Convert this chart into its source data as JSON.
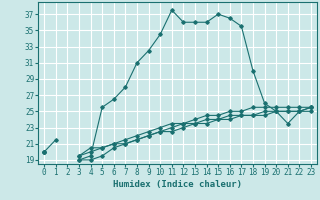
{
  "xlabel": "Humidex (Indice chaleur)",
  "ylabel": "",
  "bg_color": "#cce8e8",
  "grid_color": "#ffffff",
  "line_color": "#1a7070",
  "xlim": [
    -0.5,
    23.5
  ],
  "ylim": [
    18.5,
    38.5
  ],
  "yticks": [
    19,
    21,
    23,
    25,
    27,
    29,
    31,
    33,
    35,
    37
  ],
  "xticks": [
    0,
    1,
    2,
    3,
    4,
    5,
    6,
    7,
    8,
    9,
    10,
    11,
    12,
    13,
    14,
    15,
    16,
    17,
    18,
    19,
    20,
    21,
    22,
    23
  ],
  "series1_x": [
    0,
    1,
    2,
    3,
    4,
    5,
    6,
    7,
    8,
    9,
    10,
    11,
    12,
    13,
    14,
    15,
    16,
    17,
    18,
    19,
    20,
    21,
    22,
    23
  ],
  "series1_y": [
    20.0,
    21.5,
    null,
    19.0,
    19.5,
    25.5,
    26.5,
    28.0,
    31.0,
    32.5,
    34.5,
    37.5,
    36.0,
    36.0,
    36.0,
    37.0,
    36.5,
    35.5,
    30.0,
    26.0,
    25.0,
    23.5,
    25.0,
    25.5
  ],
  "series2_x": [
    0,
    1,
    2,
    3,
    4,
    5,
    6,
    7,
    8,
    9,
    10,
    11,
    12,
    13,
    14,
    15,
    16,
    17,
    18,
    19,
    20,
    21,
    22,
    23
  ],
  "series2_y": [
    20.0,
    null,
    null,
    19.5,
    20.5,
    20.5,
    21.0,
    21.5,
    22.0,
    22.5,
    23.0,
    23.5,
    23.5,
    24.0,
    24.5,
    24.5,
    25.0,
    25.0,
    25.5,
    25.5,
    25.5,
    25.5,
    25.5,
    25.5
  ],
  "series3_x": [
    0,
    1,
    2,
    3,
    4,
    5,
    6,
    7,
    8,
    9,
    10,
    11,
    12,
    13,
    14,
    15,
    16,
    17,
    18,
    19,
    20,
    21,
    22,
    23
  ],
  "series3_y": [
    20.0,
    null,
    null,
    19.5,
    20.0,
    20.5,
    21.0,
    21.0,
    21.5,
    22.0,
    22.5,
    22.5,
    23.0,
    23.5,
    23.5,
    24.0,
    24.0,
    24.5,
    24.5,
    25.0,
    25.0,
    25.0,
    25.0,
    25.5
  ],
  "series4_x": [
    0,
    1,
    2,
    3,
    4,
    5,
    6,
    7,
    8,
    9,
    10,
    11,
    12,
    13,
    14,
    15,
    16,
    17,
    18,
    19,
    20,
    21,
    22,
    23
  ],
  "series4_y": [
    20.0,
    null,
    null,
    19.0,
    19.0,
    19.5,
    20.5,
    21.0,
    21.5,
    22.0,
    22.5,
    23.0,
    23.5,
    23.5,
    24.0,
    24.0,
    24.5,
    24.5,
    24.5,
    24.5,
    25.0,
    25.0,
    25.0,
    25.0
  ],
  "tick_fontsize": 5.5,
  "xlabel_fontsize": 6.5
}
